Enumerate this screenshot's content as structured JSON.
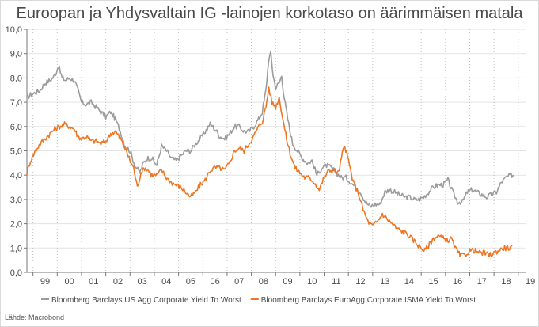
{
  "chart_data": {
    "type": "line",
    "title": "Euroopan ja Yhdysvaltain IG -lainojen korkotaso on äärimmäisen matala",
    "xlabel": "",
    "ylabel": "",
    "xlim": [
      1998.75,
      2019.3
    ],
    "ylim": [
      0,
      10
    ],
    "y_ticks": [
      "0,0",
      "1,0",
      "2,0",
      "3,0",
      "4,0",
      "5,0",
      "6,0",
      "7,0",
      "8,0",
      "9,0",
      "10,0"
    ],
    "x_ticks": [
      "99",
      "00",
      "01",
      "02",
      "03",
      "04",
      "05",
      "06",
      "07",
      "08",
      "09",
      "10",
      "11",
      "12",
      "13",
      "14",
      "15",
      "16",
      "17",
      "18",
      "19"
    ],
    "grid": {
      "x": true,
      "y": true
    },
    "legend_position": "bottom",
    "series": [
      {
        "name": "Bloomberg Barclays US Agg Corporate Yield To Worst",
        "color": "#9b9b9b",
        "points": [
          [
            1998.75,
            7.2
          ],
          [
            1998.9,
            7.3
          ],
          [
            1999.1,
            7.4
          ],
          [
            1999.3,
            7.5
          ],
          [
            1999.5,
            7.8
          ],
          [
            1999.7,
            7.9
          ],
          [
            1999.9,
            8.1
          ],
          [
            2000.05,
            8.5
          ],
          [
            2000.2,
            8.0
          ],
          [
            2000.35,
            7.9
          ],
          [
            2000.5,
            8.0
          ],
          [
            2000.7,
            7.9
          ],
          [
            2000.85,
            7.5
          ],
          [
            2001.0,
            7.0
          ],
          [
            2001.2,
            6.9
          ],
          [
            2001.4,
            7.0
          ],
          [
            2001.6,
            6.8
          ],
          [
            2001.8,
            6.6
          ],
          [
            2002.0,
            6.4
          ],
          [
            2002.2,
            6.6
          ],
          [
            2002.4,
            6.3
          ],
          [
            2002.6,
            5.8
          ],
          [
            2002.8,
            5.2
          ],
          [
            2003.0,
            5.0
          ],
          [
            2003.2,
            4.4
          ],
          [
            2003.4,
            4.1
          ],
          [
            2003.55,
            4.5
          ],
          [
            2003.7,
            4.7
          ],
          [
            2003.9,
            4.7
          ],
          [
            2004.1,
            4.4
          ],
          [
            2004.3,
            5.2
          ],
          [
            2004.5,
            5.0
          ],
          [
            2004.7,
            4.7
          ],
          [
            2004.9,
            4.6
          ],
          [
            2005.1,
            4.8
          ],
          [
            2005.3,
            5.0
          ],
          [
            2005.5,
            5.0
          ],
          [
            2005.7,
            5.3
          ],
          [
            2005.9,
            5.5
          ],
          [
            2006.1,
            5.8
          ],
          [
            2006.3,
            6.1
          ],
          [
            2006.5,
            5.9
          ],
          [
            2006.7,
            5.6
          ],
          [
            2006.9,
            5.5
          ],
          [
            2007.1,
            5.7
          ],
          [
            2007.3,
            6.0
          ],
          [
            2007.5,
            6.0
          ],
          [
            2007.7,
            5.8
          ],
          [
            2007.9,
            5.8
          ],
          [
            2008.1,
            6.0
          ],
          [
            2008.3,
            6.3
          ],
          [
            2008.45,
            6.6
          ],
          [
            2008.6,
            7.5
          ],
          [
            2008.72,
            8.8
          ],
          [
            2008.8,
            9.0
          ],
          [
            2008.9,
            8.1
          ],
          [
            2009.0,
            7.6
          ],
          [
            2009.15,
            7.8
          ],
          [
            2009.25,
            8.1
          ],
          [
            2009.35,
            7.2
          ],
          [
            2009.5,
            6.3
          ],
          [
            2009.7,
            5.3
          ],
          [
            2009.9,
            5.0
          ],
          [
            2010.1,
            4.7
          ],
          [
            2010.3,
            4.5
          ],
          [
            2010.5,
            4.6
          ],
          [
            2010.7,
            4.0
          ],
          [
            2010.9,
            4.3
          ],
          [
            2011.1,
            4.4
          ],
          [
            2011.3,
            4.3
          ],
          [
            2011.5,
            4.1
          ],
          [
            2011.7,
            3.9
          ],
          [
            2011.9,
            3.9
          ],
          [
            2012.1,
            3.7
          ],
          [
            2012.3,
            3.5
          ],
          [
            2012.5,
            3.3
          ],
          [
            2012.7,
            2.9
          ],
          [
            2012.9,
            2.7
          ],
          [
            2013.1,
            2.8
          ],
          [
            2013.3,
            2.8
          ],
          [
            2013.5,
            3.3
          ],
          [
            2013.7,
            3.4
          ],
          [
            2013.9,
            3.3
          ],
          [
            2014.1,
            3.2
          ],
          [
            2014.3,
            3.1
          ],
          [
            2014.5,
            3.1
          ],
          [
            2014.7,
            3.0
          ],
          [
            2014.9,
            3.0
          ],
          [
            2015.1,
            3.1
          ],
          [
            2015.3,
            3.3
          ],
          [
            2015.5,
            3.5
          ],
          [
            2015.7,
            3.6
          ],
          [
            2015.9,
            3.6
          ],
          [
            2016.1,
            3.8
          ],
          [
            2016.3,
            3.3
          ],
          [
            2016.5,
            2.9
          ],
          [
            2016.7,
            2.9
          ],
          [
            2016.9,
            3.3
          ],
          [
            2017.1,
            3.4
          ],
          [
            2017.3,
            3.3
          ],
          [
            2017.5,
            3.2
          ],
          [
            2017.7,
            3.1
          ],
          [
            2017.9,
            3.2
          ],
          [
            2018.1,
            3.3
          ],
          [
            2018.3,
            3.7
          ],
          [
            2018.5,
            3.9
          ],
          [
            2018.7,
            4.0
          ],
          [
            2018.82,
            4.0
          ]
        ]
      },
      {
        "name": "Bloomberg Barclays EuroAgg Corporate ISMA Yield To Worst",
        "color": "#ee7623",
        "points": [
          [
            1998.75,
            4.1
          ],
          [
            1998.9,
            4.6
          ],
          [
            1999.1,
            5.0
          ],
          [
            1999.3,
            5.3
          ],
          [
            1999.5,
            5.5
          ],
          [
            1999.7,
            5.7
          ],
          [
            1999.9,
            5.9
          ],
          [
            2000.1,
            6.0
          ],
          [
            2000.3,
            6.1
          ],
          [
            2000.5,
            6.0
          ],
          [
            2000.7,
            5.9
          ],
          [
            2000.85,
            5.6
          ],
          [
            2001.0,
            5.5
          ],
          [
            2001.2,
            5.6
          ],
          [
            2001.4,
            5.4
          ],
          [
            2001.6,
            5.4
          ],
          [
            2001.8,
            5.3
          ],
          [
            2002.0,
            5.4
          ],
          [
            2002.2,
            5.7
          ],
          [
            2002.4,
            5.8
          ],
          [
            2002.6,
            5.5
          ],
          [
            2002.8,
            5.1
          ],
          [
            2003.0,
            4.6
          ],
          [
            2003.15,
            4.3
          ],
          [
            2003.3,
            3.5
          ],
          [
            2003.45,
            4.1
          ],
          [
            2003.6,
            4.3
          ],
          [
            2003.75,
            4.2
          ],
          [
            2003.9,
            4.0
          ],
          [
            2004.1,
            4.0
          ],
          [
            2004.3,
            4.2
          ],
          [
            2004.5,
            3.9
          ],
          [
            2004.7,
            3.7
          ],
          [
            2004.9,
            3.6
          ],
          [
            2005.1,
            3.5
          ],
          [
            2005.3,
            3.3
          ],
          [
            2005.5,
            3.1
          ],
          [
            2005.7,
            3.3
          ],
          [
            2005.9,
            3.6
          ],
          [
            2006.1,
            3.8
          ],
          [
            2006.3,
            4.2
          ],
          [
            2006.5,
            4.3
          ],
          [
            2006.7,
            4.3
          ],
          [
            2006.9,
            4.2
          ],
          [
            2007.1,
            4.5
          ],
          [
            2007.3,
            5.0
          ],
          [
            2007.5,
            5.1
          ],
          [
            2007.7,
            5.0
          ],
          [
            2007.9,
            5.3
          ],
          [
            2008.1,
            5.6
          ],
          [
            2008.3,
            6.0
          ],
          [
            2008.45,
            6.2
          ],
          [
            2008.6,
            6.8
          ],
          [
            2008.72,
            7.6
          ],
          [
            2008.85,
            7.0
          ],
          [
            2009.0,
            6.8
          ],
          [
            2009.15,
            7.2
          ],
          [
            2009.3,
            6.3
          ],
          [
            2009.45,
            5.5
          ],
          [
            2009.6,
            4.9
          ],
          [
            2009.8,
            4.3
          ],
          [
            2010.0,
            4.1
          ],
          [
            2010.2,
            3.9
          ],
          [
            2010.4,
            3.9
          ],
          [
            2010.6,
            3.7
          ],
          [
            2010.8,
            3.4
          ],
          [
            2011.0,
            3.9
          ],
          [
            2011.2,
            4.2
          ],
          [
            2011.4,
            4.2
          ],
          [
            2011.6,
            4.1
          ],
          [
            2011.75,
            4.9
          ],
          [
            2011.85,
            5.2
          ],
          [
            2012.0,
            4.6
          ],
          [
            2012.2,
            3.7
          ],
          [
            2012.4,
            3.3
          ],
          [
            2012.6,
            2.6
          ],
          [
            2012.8,
            2.1
          ],
          [
            2013.0,
            1.9
          ],
          [
            2013.2,
            2.1
          ],
          [
            2013.4,
            2.4
          ],
          [
            2013.6,
            2.2
          ],
          [
            2013.8,
            2.0
          ],
          [
            2014.0,
            1.8
          ],
          [
            2014.2,
            1.7
          ],
          [
            2014.4,
            1.6
          ],
          [
            2014.6,
            1.4
          ],
          [
            2014.8,
            1.2
          ],
          [
            2015.0,
            1.0
          ],
          [
            2015.15,
            0.9
          ],
          [
            2015.3,
            1.1
          ],
          [
            2015.5,
            1.4
          ],
          [
            2015.7,
            1.5
          ],
          [
            2015.9,
            1.4
          ],
          [
            2016.1,
            1.3
          ],
          [
            2016.25,
            1.4
          ],
          [
            2016.4,
            1.0
          ],
          [
            2016.6,
            0.7
          ],
          [
            2016.8,
            0.7
          ],
          [
            2017.0,
            0.9
          ],
          [
            2017.2,
            0.9
          ],
          [
            2017.4,
            0.8
          ],
          [
            2017.6,
            0.8
          ],
          [
            2017.8,
            0.7
          ],
          [
            2018.0,
            0.8
          ],
          [
            2018.2,
            0.9
          ],
          [
            2018.4,
            1.0
          ],
          [
            2018.6,
            1.0
          ],
          [
            2018.75,
            1.0
          ]
        ]
      }
    ]
  },
  "source": "Lähde: Macrobond"
}
